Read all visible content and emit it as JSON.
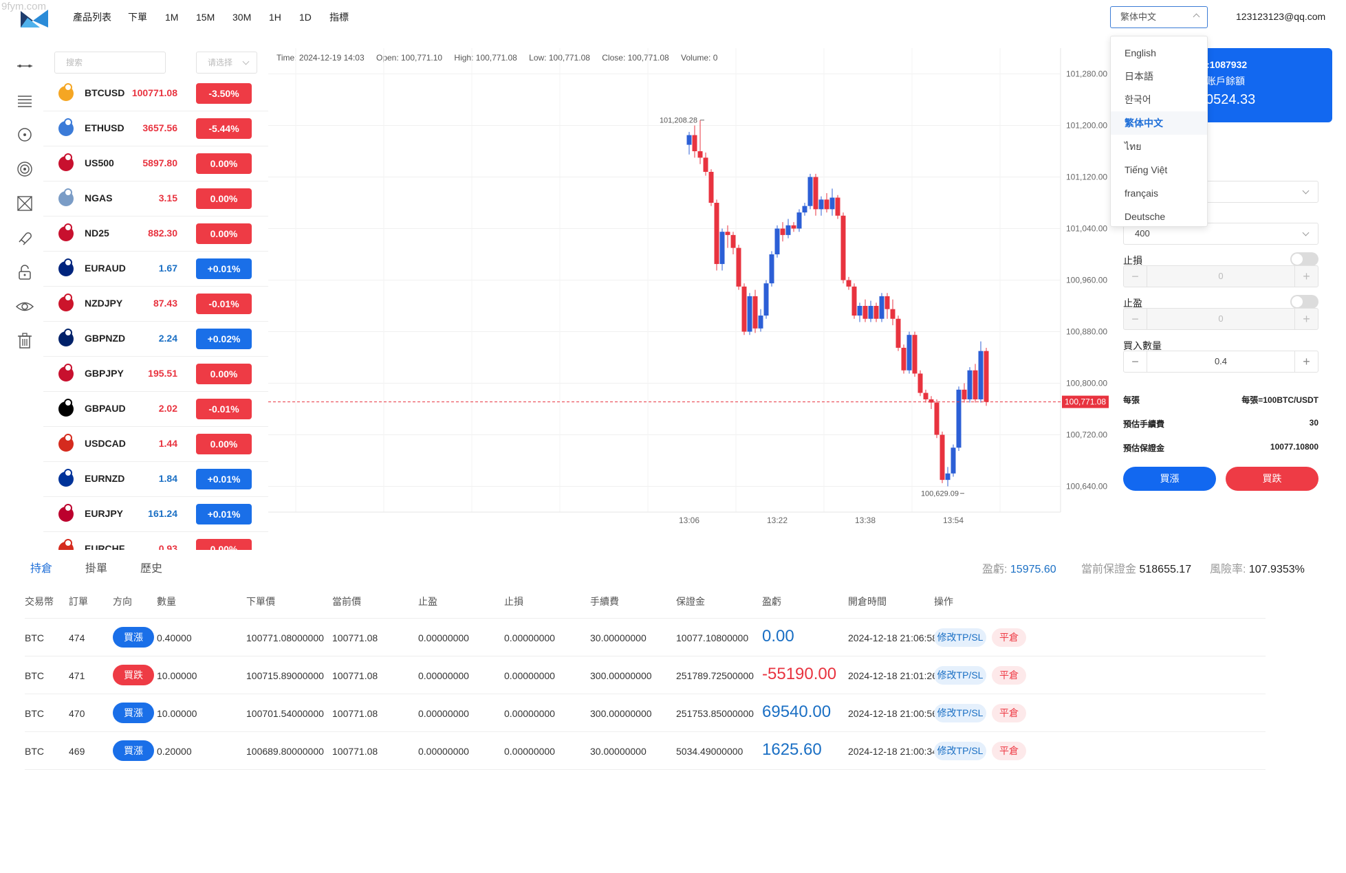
{
  "watermark": "9fym.com",
  "topbar": {
    "timeframes": [
      {
        "label": "產品列表",
        "active": true
      },
      {
        "label": "下單",
        "active": true
      },
      {
        "label": "1M",
        "active": true
      },
      {
        "label": "15M",
        "active": false
      },
      {
        "label": "30M",
        "active": false
      },
      {
        "label": "1H",
        "active": false
      },
      {
        "label": "1D",
        "active": false
      },
      {
        "label": "指標",
        "active": false
      }
    ],
    "language_selected": "繁体中文",
    "user_email": "123123123@qq.com"
  },
  "language_menu": [
    "English",
    "日本語",
    "한국어",
    "繁体中文",
    "ไทย",
    "Tiếng Việt",
    "français",
    "Deutsche"
  ],
  "product_list": {
    "search_placeholder": "搜索",
    "filter_placeholder": "请选择",
    "items": [
      {
        "symbol": "BTCUSD",
        "price": "100771.08",
        "change": "-3.50%",
        "dir": "down"
      },
      {
        "symbol": "ETHUSD",
        "price": "3657.56",
        "change": "-5.44%",
        "dir": "down"
      },
      {
        "symbol": "US500",
        "price": "5897.80",
        "change": "0.00%",
        "dir": "down"
      },
      {
        "symbol": "NGAS",
        "price": "3.15",
        "change": "0.00%",
        "dir": "down"
      },
      {
        "symbol": "ND25",
        "price": "882.30",
        "change": "0.00%",
        "dir": "down"
      },
      {
        "symbol": "EURAUD",
        "price": "1.67",
        "change": "+0.01%",
        "dir": "up"
      },
      {
        "symbol": "NZDJPY",
        "price": "87.43",
        "change": "-0.01%",
        "dir": "down"
      },
      {
        "symbol": "GBPNZD",
        "price": "2.24",
        "change": "+0.02%",
        "dir": "up"
      },
      {
        "symbol": "GBPJPY",
        "price": "195.51",
        "change": "0.00%",
        "dir": "down"
      },
      {
        "symbol": "GBPAUD",
        "price": "2.02",
        "change": "-0.01%",
        "dir": "down"
      },
      {
        "symbol": "USDCAD",
        "price": "1.44",
        "change": "0.00%",
        "dir": "down"
      },
      {
        "symbol": "EURNZD",
        "price": "1.84",
        "change": "+0.01%",
        "dir": "up"
      },
      {
        "symbol": "EURJPY",
        "price": "161.24",
        "change": "+0.01%",
        "dir": "up"
      },
      {
        "symbol": "EURCHF",
        "price": "0.93",
        "change": "0.00%",
        "dir": "down"
      }
    ],
    "flag_colors": [
      "#f5a623",
      "#3b7bd8",
      "#c8102e",
      "#7a9cc6",
      "#c8102e",
      "#00247d",
      "#cc142b",
      "#012169",
      "#c8102e",
      "#000000",
      "#d52b1e",
      "#003399",
      "#bc002d",
      "#d52b1e"
    ]
  },
  "chart_info": {
    "time": "Time: 2024-12-19 14:03",
    "open": "Open: 100,771.10",
    "high": "High: 100,771.08",
    "low": "Low: 100,771.08",
    "close": "Close: 100,771.08",
    "volume": "Volume: 0"
  },
  "chart_data": {
    "type": "candlestick",
    "y_ticks": [
      "101,280.00",
      "101,200.00",
      "101,120.00",
      "101,040.00",
      "100,960.00",
      "100,880.00",
      "100,800.00",
      "100,720.00",
      "100,640.00"
    ],
    "y_tick_values": [
      101280,
      101200,
      101120,
      101040,
      100960,
      100880,
      100800,
      100720,
      100640
    ],
    "ylim": [
      100600,
      101320
    ],
    "x_ticks": [
      "13:06",
      "13:22",
      "13:38",
      "13:54"
    ],
    "x_tick_index": [
      0,
      16,
      32,
      48
    ],
    "high_label": "101,208.28",
    "high_index": 2,
    "high_value": 101208.28,
    "low_label": "100,629.09",
    "low_index": 50,
    "low_value": 100629.09,
    "current_price_label": "100,771.08",
    "current_price": 100771.08,
    "colors": {
      "up": "#2c5fd6",
      "down": "#e8333f"
    },
    "candles": [
      [
        101170,
        101185,
        101190,
        101155
      ],
      [
        101185,
        101160,
        101200,
        101150
      ],
      [
        101160,
        101150,
        101208,
        101140
      ],
      [
        101150,
        101128,
        101158,
        101122
      ],
      [
        101128,
        101080,
        101132,
        101075
      ],
      [
        101080,
        100985,
        101085,
        100975
      ],
      [
        100985,
        101035,
        101040,
        100975
      ],
      [
        101035,
        101030,
        101045,
        101010
      ],
      [
        101030,
        101010,
        101035,
        101000
      ],
      [
        101010,
        100950,
        101015,
        100945
      ],
      [
        100950,
        100880,
        100955,
        100875
      ],
      [
        100880,
        100935,
        100940,
        100875
      ],
      [
        100935,
        100885,
        100945,
        100878
      ],
      [
        100885,
        100905,
        100915,
        100880
      ],
      [
        100905,
        100955,
        100960,
        100900
      ],
      [
        100955,
        101000,
        101005,
        100950
      ],
      [
        101000,
        101040,
        101045,
        100995
      ],
      [
        101040,
        101030,
        101050,
        101020
      ],
      [
        101030,
        101045,
        101055,
        101025
      ],
      [
        101045,
        101040,
        101050,
        101035
      ],
      [
        101040,
        101065,
        101070,
        101035
      ],
      [
        101065,
        101075,
        101080,
        101060
      ],
      [
        101075,
        101120,
        101125,
        101070
      ],
      [
        101120,
        101070,
        101125,
        101060
      ],
      [
        101070,
        101085,
        101090,
        101060
      ],
      [
        101085,
        101070,
        101095,
        101065
      ],
      [
        101070,
        101088,
        101102,
        101060
      ],
      [
        101088,
        101060,
        101092,
        101055
      ],
      [
        101060,
        100960,
        101065,
        100955
      ],
      [
        100960,
        100950,
        100965,
        100945
      ],
      [
        100950,
        100905,
        100955,
        100900
      ],
      [
        100905,
        100920,
        100925,
        100895
      ],
      [
        100920,
        100900,
        100930,
        100895
      ],
      [
        100900,
        100920,
        100928,
        100895
      ],
      [
        100920,
        100900,
        100925,
        100895
      ],
      [
        100900,
        100935,
        100940,
        100895
      ],
      [
        100935,
        100915,
        100940,
        100900
      ],
      [
        100915,
        100900,
        100930,
        100890
      ],
      [
        100900,
        100855,
        100905,
        100850
      ],
      [
        100855,
        100820,
        100860,
        100815
      ],
      [
        100820,
        100875,
        100880,
        100815
      ],
      [
        100875,
        100815,
        100880,
        100810
      ],
      [
        100815,
        100785,
        100820,
        100780
      ],
      [
        100785,
        100775,
        100790,
        100770
      ],
      [
        100775,
        100770,
        100780,
        100760
      ],
      [
        100770,
        100720,
        100775,
        100715
      ],
      [
        100720,
        100650,
        100725,
        100645
      ],
      [
        100650,
        100660,
        100670,
        100640
      ],
      [
        100660,
        100700,
        100705,
        100655
      ],
      [
        100700,
        100790,
        100795,
        100695
      ],
      [
        100790,
        100775,
        100800,
        100770
      ],
      [
        100775,
        100820,
        100825,
        100770
      ],
      [
        100820,
        100775,
        100830,
        100770
      ],
      [
        100775,
        100850,
        100865,
        100770
      ],
      [
        100850,
        100771,
        100855,
        100765
      ]
    ]
  },
  "order_panel": {
    "account_label": ":1087932",
    "balance_label": "账戶餘額",
    "balance_value": "0524.33",
    "leverage_value": "",
    "quantity_select_value": "400",
    "stop_loss_label": "止損",
    "stop_loss_value": "0",
    "take_profit_label": "止盈",
    "take_profit_value": "0",
    "buy_qty_label": "買入數量",
    "buy_qty_value": "0.4",
    "per_contract_label": "每張",
    "per_contract_value": "每張=100BTC/USDT",
    "est_fee_label": "預估手續費",
    "est_fee_value": "30",
    "est_margin_label": "預估保證金",
    "est_margin_value": "10077.10800",
    "buy_button": "買漲",
    "sell_button": "買跌"
  },
  "bottom": {
    "tabs": [
      "持倉",
      "掛單",
      "歷史"
    ],
    "summary": {
      "pnl_label": "盈虧:",
      "pnl_value": "15975.60",
      "margin_label": "當前保證金",
      "margin_value": "518655.17",
      "risk_label": "風險率:",
      "risk_value": "107.9353%"
    },
    "columns": [
      "交易幣",
      "訂單",
      "方向",
      "數量",
      "下單價",
      "當前價",
      "止盈",
      "止損",
      "手續費",
      "保證金",
      "盈虧",
      "開倉時間",
      "操作"
    ],
    "rows": [
      {
        "coin": "BTC",
        "order": "474",
        "direction": "買漲",
        "dir": "up",
        "qty": "0.40000",
        "open_price": "100771.08000000",
        "current_price": "100771.08",
        "tp": "0.00000000",
        "sl": "0.00000000",
        "fee": "30.00000000",
        "margin": "10077.10800000",
        "pnl": "0.00",
        "pnl_dir": "up",
        "open_time": "2024-12-18 21:06:58",
        "action_tp": "修改TP/SL",
        "action_close": "平倉"
      },
      {
        "coin": "BTC",
        "order": "471",
        "direction": "買跌",
        "dir": "down",
        "qty": "10.00000",
        "open_price": "100715.89000000",
        "current_price": "100771.08",
        "tp": "0.00000000",
        "sl": "0.00000000",
        "fee": "300.00000000",
        "margin": "251789.72500000",
        "pnl": "-55190.00",
        "pnl_dir": "down",
        "open_time": "2024-12-18 21:01:26",
        "action_tp": "修改TP/SL",
        "action_close": "平倉"
      },
      {
        "coin": "BTC",
        "order": "470",
        "direction": "買漲",
        "dir": "up",
        "qty": "10.00000",
        "open_price": "100701.54000000",
        "current_price": "100771.08",
        "tp": "0.00000000",
        "sl": "0.00000000",
        "fee": "300.00000000",
        "margin": "251753.85000000",
        "pnl": "69540.00",
        "pnl_dir": "up",
        "open_time": "2024-12-18 21:00:56",
        "action_tp": "修改TP/SL",
        "action_close": "平倉"
      },
      {
        "coin": "BTC",
        "order": "469",
        "direction": "買漲",
        "dir": "up",
        "qty": "0.20000",
        "open_price": "100689.80000000",
        "current_price": "100771.08",
        "tp": "0.00000000",
        "sl": "0.00000000",
        "fee": "30.00000000",
        "margin": "5034.49000000",
        "pnl": "1625.60",
        "pnl_dir": "up",
        "open_time": "2024-12-18 21:00:34",
        "action_tp": "修改TP/SL",
        "action_close": "平倉"
      }
    ]
  }
}
